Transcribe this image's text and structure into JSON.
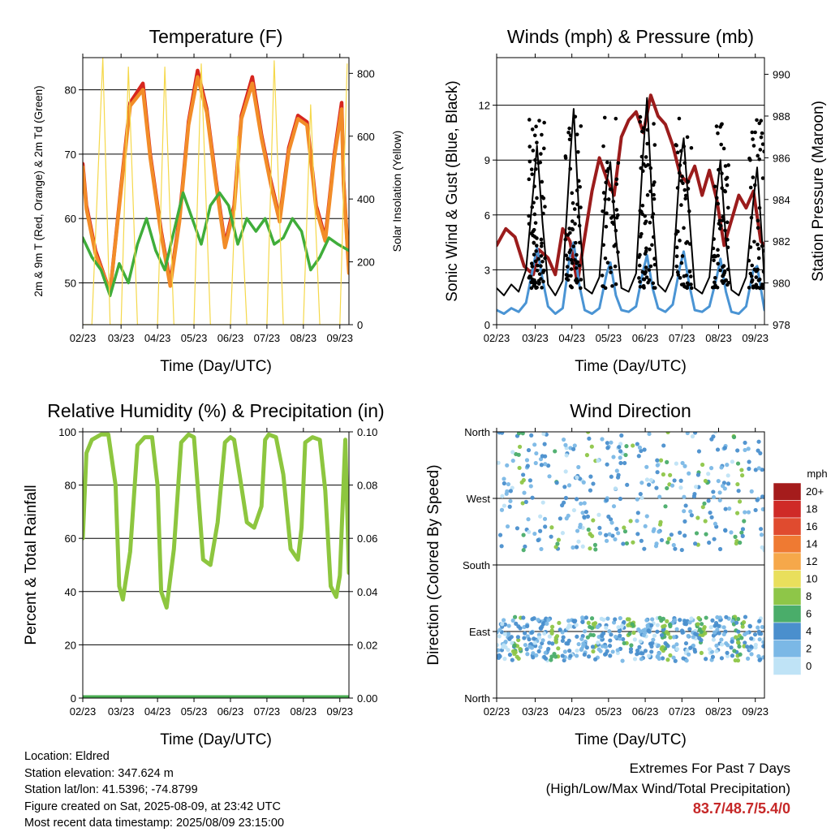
{
  "charts": {
    "temperature": {
      "title": "Temperature (F)",
      "xlabel": "Time (Day/UTC)",
      "ylabel_left": "2m & 9m T (Red, Orange) & 2m Td (Green)",
      "ylabel_right": "Solar Insolation (Yellow)"
    },
    "winds": {
      "title": "Winds (mph) & Pressure (mb)",
      "xlabel": "Time (Day/UTC)",
      "ylabel_left": "Sonic Wind & Gust (Blue, Black)",
      "ylabel_right": "Station Pressure (Maroon)"
    },
    "humidity": {
      "title": "Relative Humidity (%) & Precipitation (in)",
      "xlabel": "Time (Day/UTC)",
      "ylabel_left": "Percent & Total Rainfall"
    },
    "direction": {
      "title": "Wind Direction",
      "xlabel": "Time (Day/UTC)",
      "ylabel_left": "Direction (Colored By Speed)",
      "legend_title": "mph"
    }
  },
  "chart_data": [
    {
      "id": "temperature",
      "type": "line",
      "x_ticks": [
        "02/23",
        "03/23",
        "04/23",
        "05/23",
        "06/23",
        "07/23",
        "08/23",
        "09/23"
      ],
      "ylim": [
        43.5,
        85
      ],
      "y_ticks": [
        "50",
        "60",
        "70",
        "80"
      ],
      "y2lim": [
        0,
        850
      ],
      "y2_ticks": [
        "0",
        "200",
        "400",
        "600",
        "800"
      ],
      "grid": "horizontal",
      "series": [
        {
          "color": "#d7261e",
          "x": [
            0,
            0.2,
            0.7,
            1.5,
            2.1,
            2.6,
            3.3,
            3.7,
            4.3,
            4.8,
            5.3,
            5.8,
            6.3,
            6.8,
            7.3,
            7.8,
            8.3,
            8.7,
            9.3,
            9.8,
            10.3,
            10.8,
            11.3,
            11.8,
            12.3,
            12.8,
            13.3,
            13.8,
            14.2,
            14.3,
            14.6
          ],
          "y": [
            68.5,
            62,
            55,
            48.5,
            65,
            78,
            81,
            70,
            58,
            50,
            60,
            75,
            83,
            77,
            66,
            56,
            62,
            76,
            82,
            73,
            66,
            60,
            71,
            76,
            75,
            62,
            57,
            70,
            78,
            66,
            52
          ]
        },
        {
          "color": "#f28c28",
          "x": [
            0,
            0.2,
            0.7,
            1.5,
            2.1,
            2.6,
            3.3,
            3.7,
            4.3,
            4.8,
            5.3,
            5.8,
            6.3,
            6.8,
            7.3,
            7.8,
            8.3,
            8.7,
            9.3,
            9.8,
            10.3,
            10.8,
            11.3,
            11.8,
            12.3,
            12.8,
            13.3,
            13.8,
            14.2,
            14.3,
            14.6
          ],
          "y": [
            68,
            61.5,
            54.5,
            48.5,
            64.5,
            77.5,
            80,
            69.5,
            57.5,
            49.5,
            59.5,
            74.5,
            82,
            76.5,
            65.5,
            55.5,
            61.5,
            75.5,
            81,
            72.5,
            65.5,
            59.5,
            70.5,
            75.5,
            74.5,
            61.5,
            56.5,
            69.5,
            77,
            65.5,
            51.5
          ]
        },
        {
          "color": "#3fad3a",
          "x": [
            0,
            0.5,
            1.0,
            1.5,
            2.0,
            2.5,
            3.0,
            3.5,
            4.0,
            4.5,
            5.0,
            5.5,
            6.0,
            6.5,
            7.0,
            7.5,
            8.0,
            8.5,
            9.0,
            9.5,
            10.0,
            10.5,
            11.0,
            11.5,
            12.0,
            12.5,
            13.0,
            13.5,
            14.0,
            14.6
          ],
          "y": [
            57,
            54,
            52,
            48,
            53,
            50,
            56,
            60,
            55,
            52,
            58,
            64,
            60,
            56,
            62,
            64,
            62,
            56,
            60,
            58,
            60,
            56,
            57,
            60,
            58,
            52,
            54,
            57,
            56,
            55
          ]
        },
        {
          "color": "#f5d84a",
          "x": [
            0,
            0.5,
            1.1,
            1.5,
            2.0,
            2.1,
            2.5,
            3.0,
            3.1,
            3.5,
            4.0,
            4.1,
            4.5,
            5.0,
            5.1,
            5.5,
            6.0,
            6.1,
            6.5,
            7.0,
            7.1,
            7.5,
            8.0,
            8.1,
            8.5,
            9.0,
            9.1,
            9.5,
            10.0,
            10.1,
            10.5,
            11.0,
            11.1,
            11.5,
            12.0,
            12.1,
            12.5,
            13.0,
            13.1,
            13.5,
            14.0,
            14.1,
            14.5
          ],
          "y": [
            0,
            0,
            850,
            0,
            0,
            0,
            820,
            0,
            0,
            0,
            0,
            0,
            820,
            0,
            0,
            0,
            0,
            0,
            830,
            0,
            0,
            0,
            0,
            0,
            600,
            0,
            0,
            0,
            0,
            0,
            840,
            0,
            0,
            0,
            0,
            0,
            700,
            0,
            0,
            0,
            0,
            0,
            830
          ]
        }
      ]
    },
    {
      "id": "winds",
      "type": "line",
      "x_ticks": [
        "02/23",
        "03/23",
        "04/23",
        "05/23",
        "06/23",
        "07/23",
        "08/23",
        "09/23"
      ],
      "ylim": [
        0,
        14.6
      ],
      "y_ticks": [
        "0",
        "3",
        "6",
        "9",
        "12"
      ],
      "y2lim": [
        978,
        990.8
      ],
      "y2_ticks": [
        "978",
        "980",
        "982",
        "984",
        "986",
        "988",
        "990"
      ],
      "grid": "horizontal",
      "series": [
        {
          "color": "#9b1c1c",
          "x": [
            0,
            0.5,
            1.0,
            1.5,
            2.0,
            2.3,
            2.8,
            3.2,
            3.6,
            4.0,
            4.4,
            4.8,
            5.2,
            5.6,
            6.0,
            6.4,
            6.8,
            7.2,
            7.6,
            8.0,
            8.4,
            8.8,
            9.2,
            9.6,
            10.0,
            10.4,
            10.8,
            11.2,
            11.6,
            12.0,
            12.4,
            12.8,
            13.2,
            13.6,
            14.0,
            14.4,
            14.6
          ],
          "y": [
            981.8,
            982.6,
            982.2,
            980.8,
            980.4,
            981.6,
            981.2,
            980.4,
            982.6,
            982.0,
            980.0,
            982.2,
            984.4,
            986.0,
            985.0,
            984.2,
            987.0,
            987.8,
            988.2,
            987.2,
            989.0,
            988.0,
            987.6,
            986.6,
            985.2,
            984.8,
            985.6,
            984.2,
            985.4,
            984.0,
            981.8,
            983.0,
            984.2,
            983.6,
            984.4,
            982.0,
            981.8
          ]
        },
        {
          "color": "#4a94d4",
          "x": [
            0,
            0.4,
            0.8,
            1.2,
            1.6,
            2.0,
            2.2,
            2.5,
            2.8,
            3.2,
            3.6,
            4.0,
            4.2,
            4.5,
            4.8,
            5.2,
            5.6,
            6.0,
            6.2,
            6.5,
            6.8,
            7.2,
            7.6,
            8.0,
            8.2,
            8.5,
            8.8,
            9.2,
            9.6,
            10.0,
            10.2,
            10.5,
            10.8,
            11.2,
            11.6,
            12.0,
            12.2,
            12.5,
            12.8,
            13.2,
            13.6,
            14.0,
            14.2,
            14.5,
            14.6
          ],
          "y": [
            0.8,
            0.6,
            0.9,
            0.7,
            1.2,
            3.2,
            4.2,
            2.5,
            1.0,
            0.6,
            0.9,
            3.8,
            4.5,
            2.2,
            0.8,
            0.6,
            0.9,
            2.8,
            3.4,
            1.6,
            0.8,
            0.7,
            1.0,
            3.0,
            3.8,
            2.0,
            0.9,
            0.7,
            1.1,
            3.2,
            4.0,
            2.2,
            0.8,
            0.7,
            1.0,
            2.6,
            3.6,
            1.8,
            0.7,
            0.6,
            1.0,
            3.0,
            3.2,
            1.4,
            0.8
          ]
        },
        {
          "color": "#000000",
          "x": [
            0,
            0.4,
            0.8,
            1.2,
            1.6,
            2.0,
            2.2,
            2.5,
            2.8,
            3.2,
            3.6,
            4.0,
            4.2,
            4.5,
            4.8,
            5.2,
            5.6,
            6.0,
            6.2,
            6.5,
            6.8,
            7.2,
            7.6,
            8.0,
            8.2,
            8.5,
            8.8,
            9.2,
            9.6,
            10.0,
            10.2,
            10.5,
            10.8,
            11.2,
            11.6,
            12.0,
            12.2,
            12.5,
            12.8,
            13.2,
            13.6,
            14.0,
            14.2,
            14.5,
            14.6
          ],
          "y": [
            2.0,
            1.6,
            2.2,
            1.8,
            3.0,
            7.4,
            9.8,
            5.6,
            2.2,
            1.6,
            2.4,
            9.0,
            11.8,
            5.8,
            2.0,
            1.7,
            2.6,
            7.8,
            8.9,
            4.8,
            2.0,
            1.8,
            2.8,
            9.6,
            12.4,
            6.2,
            2.2,
            1.8,
            2.7,
            8.8,
            10.2,
            6.0,
            2.0,
            1.7,
            2.6,
            7.2,
            9.0,
            4.6,
            1.9,
            1.6,
            2.6,
            6.8,
            8.6,
            4.2,
            2.2
          ]
        }
      ]
    },
    {
      "id": "humidity",
      "type": "line",
      "x_ticks": [
        "02/23",
        "03/23",
        "04/23",
        "05/23",
        "06/23",
        "07/23",
        "08/23",
        "09/23"
      ],
      "ylim": [
        0,
        100
      ],
      "y_ticks": [
        "0",
        "20",
        "40",
        "60",
        "80",
        "100"
      ],
      "y2lim": [
        0,
        0.1
      ],
      "y2_ticks": [
        "0.00",
        "0.02",
        "0.04",
        "0.06",
        "0.08",
        "0.10"
      ],
      "grid": "horizontal",
      "series": [
        {
          "color": "#8dc63f",
          "x": [
            0,
            0.2,
            0.5,
            1.0,
            1.4,
            1.8,
            2.0,
            2.2,
            2.6,
            3.0,
            3.4,
            3.8,
            4.1,
            4.3,
            4.6,
            5.0,
            5.4,
            5.8,
            6.1,
            6.3,
            6.6,
            7.0,
            7.4,
            7.8,
            8.1,
            8.3,
            8.6,
            9.0,
            9.4,
            9.8,
            10.0,
            10.2,
            10.6,
            11.0,
            11.4,
            11.8,
            12.0,
            12.2,
            12.6,
            13.0,
            13.3,
            13.6,
            13.9,
            14.1,
            14.4,
            14.6
          ],
          "y": [
            60,
            92,
            97,
            99,
            99,
            80,
            42,
            37,
            55,
            95,
            98,
            98,
            80,
            40,
            34,
            56,
            96,
            99,
            98,
            80,
            52,
            50,
            66,
            96,
            98,
            97,
            84,
            66,
            64,
            72,
            97,
            99,
            98,
            84,
            56,
            52,
            64,
            96,
            98,
            97,
            78,
            42,
            38,
            46,
            97,
            47
          ]
        },
        {
          "color": "#4aad52",
          "x": [
            0,
            14.6
          ],
          "y": [
            0,
            0
          ]
        }
      ]
    },
    {
      "id": "direction",
      "type": "scatter",
      "x_ticks": [
        "02/23",
        "03/23",
        "04/23",
        "05/23",
        "06/23",
        "07/23",
        "08/23",
        "09/23"
      ],
      "ylim": [
        0,
        360
      ],
      "y_ticks": [
        "North",
        "East",
        "South",
        "West",
        "North"
      ],
      "grid": "horizontal",
      "legend": {
        "labels": [
          "20+",
          "18",
          "16",
          "14",
          "12",
          "10",
          "8",
          "6",
          "4",
          "2",
          "0"
        ],
        "colors": [
          "#a51c1c",
          "#cf2a27",
          "#e04b2f",
          "#ef7a32",
          "#f6a84a",
          "#e9df5c",
          "#8ec648",
          "#4aad6a",
          "#4a8fcd",
          "#7bb8e6",
          "#bfe3f6"
        ],
        "placement": "right"
      }
    }
  ],
  "info": {
    "location": "Location: Eldred",
    "elevation": "Station elevation: 347.624 m",
    "latlon": "Station lat/lon: 41.5396; -74.8799",
    "created": "Figure created on Sat, 2025-08-09, at 23:42 UTC",
    "recent": "Most recent data timestamp: 2025/08/09 23:15:00"
  },
  "extremes": {
    "title": "Extremes For Past 7 Days",
    "subtitle": "(High/Low/Max Wind/Total Precipitation)",
    "values": "83.7/48.7/5.4/0"
  }
}
